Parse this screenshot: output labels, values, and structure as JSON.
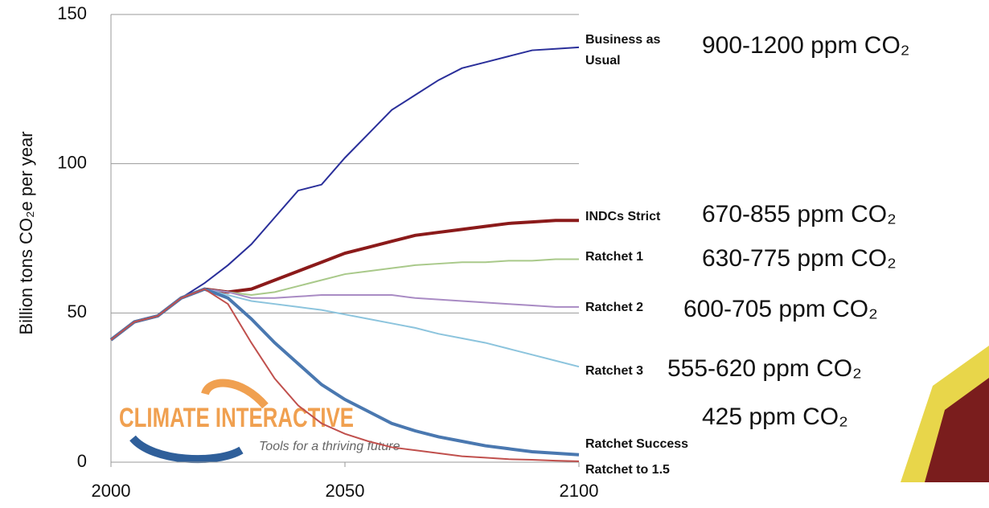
{
  "chart_data": {
    "type": "line",
    "ylabel": "Billion tons CO₂e per year",
    "x": [
      2000,
      2005,
      2010,
      2015,
      2020,
      2025,
      2030,
      2035,
      2040,
      2045,
      2050,
      2055,
      2060,
      2065,
      2070,
      2075,
      2080,
      2085,
      2090,
      2095,
      2100
    ],
    "xlim": [
      2000,
      2100
    ],
    "xticks": [
      2000,
      2050,
      2100
    ],
    "ylim": [
      0,
      150
    ],
    "yticks": [
      0,
      50,
      100,
      150
    ],
    "grid": true,
    "series": [
      {
        "name": "Business as Usual",
        "color": "#2a2f9a",
        "values": [
          41,
          47,
          49,
          55,
          60,
          66,
          73,
          82,
          91,
          93,
          102,
          110,
          118,
          123,
          128,
          132,
          134,
          136,
          138,
          138.5,
          139
        ]
      },
      {
        "name": "INDCs Strict",
        "color": "#8b1a1a",
        "values": [
          41,
          47,
          49,
          55,
          58,
          57,
          58,
          61,
          64,
          67,
          70,
          72,
          74,
          76,
          77,
          78,
          79,
          80,
          80.5,
          81,
          81
        ]
      },
      {
        "name": "Ratchet 1",
        "color": "#a9c98a",
        "values": [
          41,
          47,
          49,
          55,
          58,
          57,
          56,
          57,
          59,
          61,
          63,
          64,
          65,
          66,
          66.5,
          67,
          67,
          67.5,
          67.5,
          68,
          68
        ]
      },
      {
        "name": "Ratchet 2",
        "color": "#a98bc4",
        "values": [
          41,
          47,
          49,
          55,
          58,
          57,
          55,
          55,
          55.5,
          56,
          56,
          56,
          56,
          55,
          54.5,
          54,
          53.5,
          53,
          52.5,
          52,
          52
        ]
      },
      {
        "name": "Ratchet 3",
        "color": "#8cc4dd",
        "values": [
          41,
          47,
          49,
          55,
          58,
          56,
          54,
          53,
          52,
          51,
          49.5,
          48,
          46.5,
          45,
          43,
          41.5,
          40,
          38,
          36,
          34,
          32
        ]
      },
      {
        "name": "Ratchet Success",
        "color": "#4a78b0",
        "values": [
          41,
          47,
          49,
          55,
          58,
          55,
          48,
          40,
          33,
          26,
          21,
          17,
          13,
          10.5,
          8.5,
          7,
          5.5,
          4.5,
          3.5,
          3,
          2.5
        ]
      },
      {
        "name": "Ratchet to 1.5",
        "color": "#c0504d",
        "values": [
          41,
          47,
          49,
          55,
          58,
          53,
          40,
          28,
          19,
          13,
          9.5,
          7,
          5,
          4,
          3,
          2,
          1.5,
          1,
          0.8,
          0.5,
          0.3
        ]
      }
    ],
    "annotations": [
      "900-1200 ppm CO₂",
      "670-855 ppm CO₂",
      "630-775 ppm CO₂",
      "600-705 ppm CO₂",
      "555-620 ppm CO₂",
      "425 ppm CO₂"
    ]
  },
  "logo": {
    "name": "CLIMATE INTERACTIVE",
    "tagline": "Tools for a thriving future"
  }
}
